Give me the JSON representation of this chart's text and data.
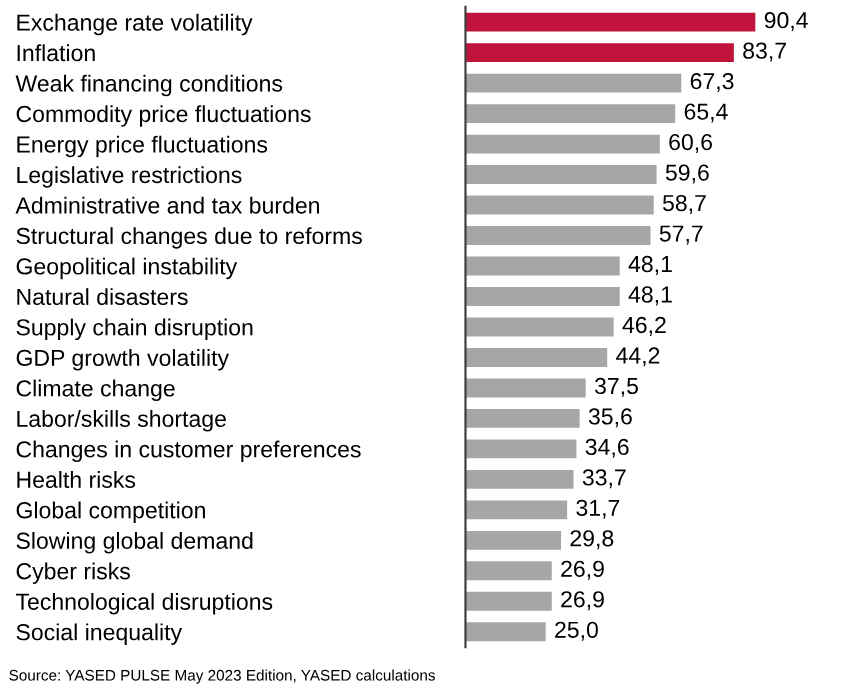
{
  "chart_data": {
    "type": "bar",
    "orientation": "horizontal",
    "tick_labels": "y",
    "grid": false,
    "legend": false,
    "data_labels": true,
    "categories": [
      "Exchange rate volatility",
      "Inflation",
      "Weak financing conditions",
      "Commodity price fluctuations",
      "Energy price fluctuations",
      "Legislative restrictions",
      "Administrative and tax burden",
      "Structural changes due to reforms",
      "Geopolitical instability",
      "Natural disasters",
      "Supply chain disruption",
      "GDP growth volatility",
      "Climate change",
      "Labor/skills shortage",
      "Changes in customer preferences",
      "Health risks",
      "Global competition",
      "Slowing global demand",
      "Cyber risks",
      "Technological disruptions",
      "Social inequality"
    ],
    "values": [
      90.4,
      83.7,
      67.3,
      65.4,
      60.6,
      59.6,
      58.7,
      57.7,
      48.1,
      48.1,
      46.2,
      44.2,
      37.5,
      35.6,
      34.6,
      33.7,
      31.7,
      29.8,
      26.9,
      26.9,
      25.0
    ],
    "value_labels": [
      "90,4",
      "83,7",
      "67,3",
      "65,4",
      "60,6",
      "59,6",
      "58,7",
      "57,7",
      "48,1",
      "48,1",
      "46,2",
      "44,2",
      "37,5",
      "35,6",
      "34,6",
      "33,7",
      "31,7",
      "29,8",
      "26,9",
      "26,9",
      "25,0"
    ],
    "colors": [
      "#c0143c",
      "#c0143c",
      "#a6a6a6",
      "#a6a6a6",
      "#a6a6a6",
      "#a6a6a6",
      "#a6a6a6",
      "#a6a6a6",
      "#a6a6a6",
      "#a6a6a6",
      "#a6a6a6",
      "#a6a6a6",
      "#a6a6a6",
      "#a6a6a6",
      "#a6a6a6",
      "#a6a6a6",
      "#a6a6a6",
      "#a6a6a6",
      "#a6a6a6",
      "#a6a6a6",
      "#a6a6a6"
    ],
    "annotations": [
      "Source: YASED PULSE May 2023 Edition, YASED calculations"
    ]
  }
}
